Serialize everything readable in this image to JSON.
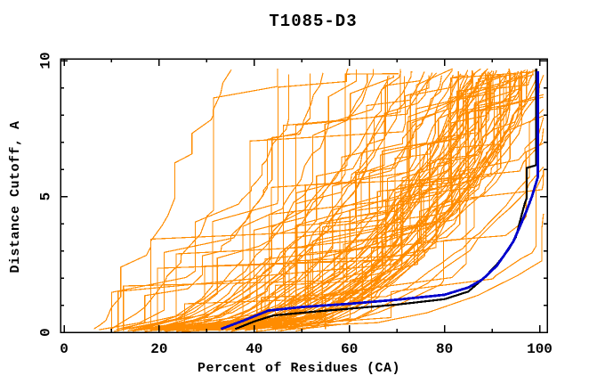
{
  "figure": {
    "background": "#ffffff",
    "frame_color": "#000000"
  },
  "chart_data": {
    "type": "line",
    "title": "T1085-D3",
    "xlabel": "Percent of Residues (CA)",
    "ylabel": "Distance Cutoff, A",
    "xlim": [
      0,
      100
    ],
    "ylim": [
      0,
      10
    ],
    "x_ticks": [
      0,
      20,
      40,
      60,
      80,
      100
    ],
    "x_tick_labels": [
      "0",
      "20",
      "40",
      "60",
      "80",
      "100"
    ],
    "x_minor_step": 10,
    "y_ticks": [
      0,
      5,
      10
    ],
    "y_tick_labels": [
      "0",
      "5",
      "10"
    ],
    "y_minor_step": 1,
    "grid": false,
    "legend": "none",
    "colors": {
      "models": "#ff8c00",
      "highlight_blue": "#0000cd",
      "highlight_black": "#000000",
      "frame": "#000000",
      "background": "#ffffff"
    },
    "series": [
      {
        "name": "model-ensemble-orange",
        "note_visible_style": "thin orange cumulative curves",
        "curve_params_x_at_y0_x_at_ytop_shape": [
          [
            6,
            35,
            0.8
          ],
          [
            9,
            47,
            0.7
          ],
          [
            10,
            52,
            0.62
          ],
          [
            8,
            55,
            0.52
          ],
          [
            12,
            57,
            0.66
          ],
          [
            11,
            60,
            0.5
          ],
          [
            14,
            62,
            0.56
          ],
          [
            10,
            64,
            0.46
          ],
          [
            16,
            66,
            0.6
          ],
          [
            13,
            68,
            0.5
          ],
          [
            18,
            69,
            0.55
          ],
          [
            12,
            70,
            0.45
          ],
          [
            20,
            71,
            0.6
          ],
          [
            15,
            72,
            0.5
          ],
          [
            22,
            73,
            0.55
          ],
          [
            17,
            74,
            0.45
          ],
          [
            24,
            75,
            0.6
          ],
          [
            14,
            76,
            0.5
          ],
          [
            26,
            77,
            0.55
          ],
          [
            19,
            78,
            0.45
          ],
          [
            21,
            79,
            0.6
          ],
          [
            16,
            80,
            0.42
          ],
          [
            28,
            81,
            0.55
          ],
          [
            23,
            82,
            0.5
          ],
          [
            18,
            83,
            0.45
          ],
          [
            30,
            84,
            0.55
          ],
          [
            25,
            85,
            0.5
          ],
          [
            20,
            85.5,
            0.4
          ],
          [
            16,
            75.5,
            0.45
          ],
          [
            13,
            81,
            0.5
          ],
          [
            32,
            86,
            0.5
          ],
          [
            22,
            86.5,
            0.45
          ],
          [
            27,
            87,
            0.55
          ],
          [
            17,
            87.5,
            0.4
          ],
          [
            34,
            88,
            0.5
          ],
          [
            24,
            88.5,
            0.45
          ],
          [
            29,
            89,
            0.55
          ],
          [
            19,
            89.5,
            0.4
          ],
          [
            36,
            90,
            0.5
          ],
          [
            26,
            90.5,
            0.45
          ],
          [
            31,
            91,
            0.55
          ],
          [
            21,
            91.5,
            0.4
          ],
          [
            38,
            92,
            0.5
          ],
          [
            28,
            92.5,
            0.45
          ],
          [
            33,
            93,
            0.55
          ],
          [
            23,
            93.5,
            0.4
          ],
          [
            40,
            94,
            0.5
          ],
          [
            30,
            94.5,
            0.45
          ],
          [
            35,
            95,
            0.55
          ],
          [
            25,
            95.5,
            0.4
          ],
          [
            35,
            87.8,
            0.52
          ],
          [
            15,
            90.2,
            0.38
          ],
          [
            37,
            92.8,
            0.5
          ],
          [
            29,
            95.8,
            0.44
          ],
          [
            42,
            89.8,
            0.52
          ],
          [
            12,
            86.2,
            0.35
          ],
          [
            39,
            93.8,
            0.5
          ],
          [
            34,
            84.5,
            0.52
          ],
          [
            18,
            94.8,
            0.36
          ],
          [
            42,
            96,
            0.5
          ],
          [
            32,
            96.5,
            0.45
          ],
          [
            37,
            97,
            0.55
          ],
          [
            27,
            97.5,
            0.4
          ],
          [
            44,
            98,
            0.5
          ],
          [
            34,
            98.3,
            0.45
          ],
          [
            39,
            98.6,
            0.55
          ],
          [
            29,
            99,
            0.4
          ],
          [
            46,
            99.2,
            0.5
          ],
          [
            36,
            99.4,
            0.45
          ],
          [
            41,
            99.6,
            0.55
          ],
          [
            31,
            99.8,
            0.4
          ],
          [
            48,
            100,
            0.5
          ],
          [
            38,
            100,
            0.45
          ],
          [
            43,
            100,
            0.55
          ],
          [
            33,
            100,
            0.4
          ],
          [
            45,
            96.8,
            0.55
          ],
          [
            47,
            98.8,
            0.55
          ],
          [
            22,
            97.8,
            0.4
          ],
          [
            20,
            101.5,
            0.38
          ],
          [
            35,
            102,
            0.5
          ],
          [
            28,
            103,
            0.42
          ],
          [
            45,
            104,
            0.55
          ],
          [
            24,
            105,
            0.38
          ],
          [
            40,
            106,
            0.5
          ],
          [
            30,
            108,
            0.42
          ],
          [
            50,
            110,
            0.55
          ],
          [
            26,
            112,
            0.36
          ],
          [
            44,
            115,
            0.48
          ],
          [
            36,
            120,
            0.4
          ],
          [
            55,
            118,
            0.55
          ],
          [
            30,
            130,
            0.33
          ],
          [
            25,
            135,
            0.3
          ]
        ]
      },
      {
        "name": "highlight-model-blue",
        "points": [
          [
            33,
            0.12
          ],
          [
            38,
            0.45
          ],
          [
            43,
            0.8
          ],
          [
            50,
            0.93
          ],
          [
            60,
            1.05
          ],
          [
            70,
            1.2
          ],
          [
            80,
            1.38
          ],
          [
            85,
            1.65
          ],
          [
            88,
            1.95
          ],
          [
            91,
            2.45
          ],
          [
            93,
            2.95
          ],
          [
            94.5,
            3.35
          ],
          [
            96,
            3.95
          ],
          [
            97.3,
            4.5
          ],
          [
            98.4,
            5.0
          ],
          [
            99,
            5.35
          ],
          [
            99.6,
            5.7
          ],
          [
            99.6,
            9.6
          ]
        ]
      },
      {
        "name": "highlight-model-black",
        "points": [
          [
            36,
            0.12
          ],
          [
            40,
            0.4
          ],
          [
            44,
            0.62
          ],
          [
            52,
            0.75
          ],
          [
            60,
            0.87
          ],
          [
            70,
            1.02
          ],
          [
            80,
            1.22
          ],
          [
            85,
            1.5
          ],
          [
            88,
            1.95
          ],
          [
            91,
            2.5
          ],
          [
            93.5,
            3.05
          ],
          [
            95,
            3.5
          ],
          [
            96.2,
            4.3
          ],
          [
            96.9,
            4.75
          ],
          [
            97.3,
            4.95
          ],
          [
            97.3,
            6.05
          ],
          [
            99.3,
            6.15
          ],
          [
            99.3,
            9.7
          ]
        ]
      }
    ]
  }
}
